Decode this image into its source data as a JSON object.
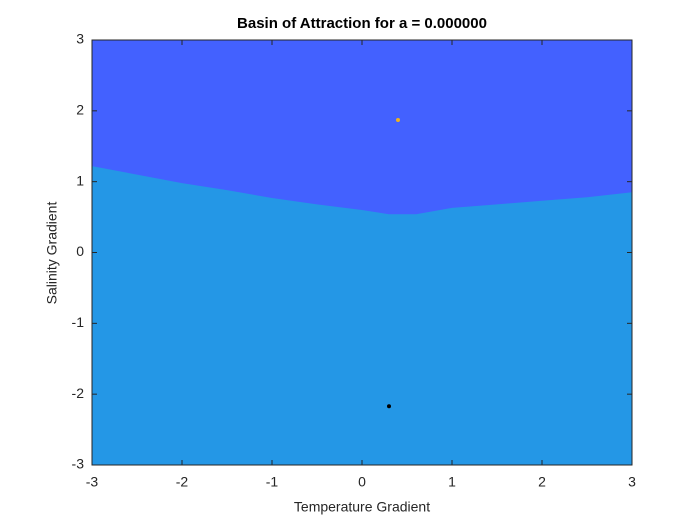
{
  "chart_data": {
    "type": "basin",
    "title": "Basin of Attraction for a = 0.000000",
    "xlabel": "Temperature Gradient",
    "ylabel": "Salinity Gradient",
    "xlim": [
      -3,
      3
    ],
    "ylim": [
      -3,
      3
    ],
    "xticks": [
      -3,
      -2,
      -1,
      0,
      1,
      2,
      3
    ],
    "yticks": [
      -3,
      -2,
      -1,
      0,
      1,
      2,
      3
    ],
    "upper_color": "#4361ff",
    "lower_color": "#2497e6",
    "boundary": {
      "x": [
        -3,
        -2.5,
        -2,
        -1.5,
        -1,
        -0.5,
        0,
        0.3,
        0.6,
        1,
        1.5,
        2,
        2.5,
        3
      ],
      "y": [
        1.22,
        1.1,
        0.98,
        0.88,
        0.77,
        0.68,
        0.6,
        0.54,
        0.54,
        0.63,
        0.68,
        0.73,
        0.78,
        0.85
      ]
    },
    "points": [
      {
        "x": 0.4,
        "y": 1.87,
        "color": "#edb120"
      },
      {
        "x": 0.3,
        "y": -2.17,
        "color": "#000000"
      }
    ]
  }
}
